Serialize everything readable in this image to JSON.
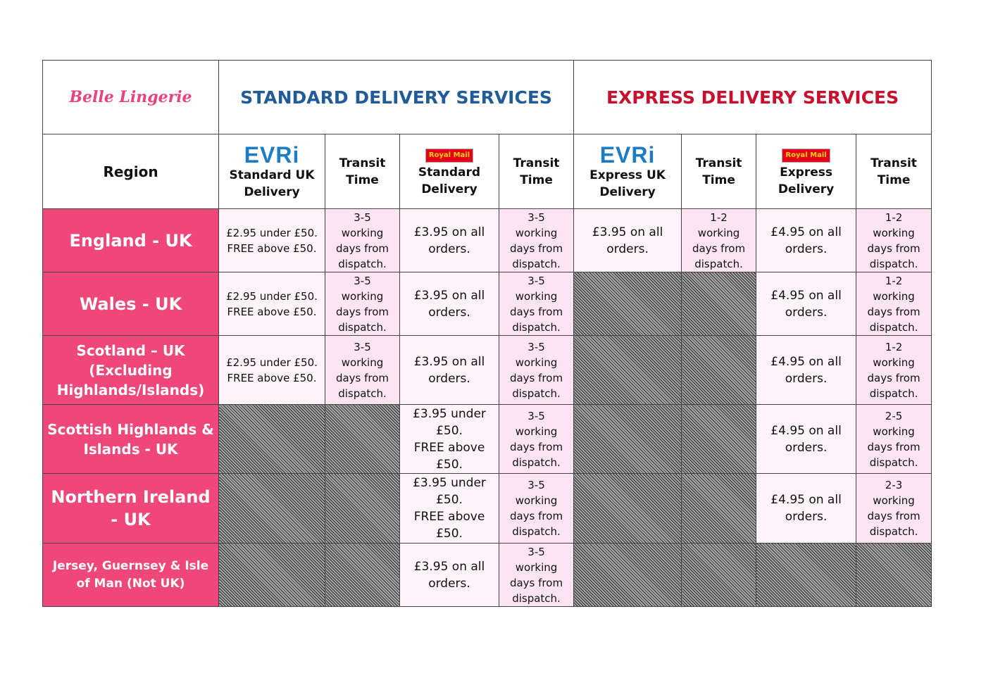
{
  "brand": "Belle Lingerie",
  "groups": [
    "STANDARD DELIVERY SERVICES",
    "EXPRESS DELIVERY SERVICES"
  ],
  "region_header": "Region",
  "columns": [
    {
      "logo": "EVRi",
      "label": "Standard UK Delivery"
    },
    {
      "label": "Transit Time"
    },
    {
      "logo": "Royal Mail",
      "label": "Standard Delivery"
    },
    {
      "label": "Transit Time"
    },
    {
      "logo": "EVRi",
      "label": "Express UK Delivery"
    },
    {
      "label": "Transit Time"
    },
    {
      "logo": "Royal Mail",
      "label": "Express Delivery"
    },
    {
      "label": "Transit Time"
    }
  ],
  "rows": [
    {
      "region": "England - UK",
      "cells": [
        "£2.95 under £50.\nFREE above £50.",
        "3-5 working days from dispatch.",
        "£3.95 on all orders.",
        "3-5 working days from dispatch.",
        "£3.95 on all orders.",
        "1-2 working days from dispatch.",
        "£4.95 on all orders.",
        "1-2 working days from dispatch."
      ]
    },
    {
      "region": "Wales - UK",
      "cells": [
        "£2.95 under £50.\nFREE above £50.",
        "3-5 working days from dispatch.",
        "£3.95 on all orders.",
        "3-5 working days from dispatch.",
        null,
        null,
        "£4.95 on all orders.",
        "1-2 working days from dispatch."
      ]
    },
    {
      "region": "Scotland – UK (Excluding Highlands/Islands)",
      "cells": [
        "£2.95 under £50.\nFREE above £50.",
        "3-5 working days from dispatch.",
        "£3.95 on all orders.",
        "3-5 working days from dispatch.",
        null,
        null,
        "£4.95 on all orders.",
        "1-2 working days from dispatch."
      ]
    },
    {
      "region": "Scottish Highlands & Islands - UK",
      "cells": [
        null,
        null,
        "£3.95 under £50.\nFREE above £50.",
        "3-5 working days from dispatch.",
        null,
        null,
        "£4.95 on all orders.",
        "2-5 working days from dispatch."
      ]
    },
    {
      "region": "Northern Ireland - UK",
      "cells": [
        null,
        null,
        "£3.95 under £50.\nFREE above £50.",
        "3-5 working days from dispatch.",
        null,
        null,
        "£4.95 on all orders.",
        "2-3 working days from dispatch."
      ]
    },
    {
      "region": "Jersey, Guernsey & Isle of Man (Not UK)",
      "cells": [
        null,
        null,
        "£3.95 on all orders.",
        "3-5 working days from dispatch.",
        null,
        null,
        null,
        null
      ]
    }
  ]
}
